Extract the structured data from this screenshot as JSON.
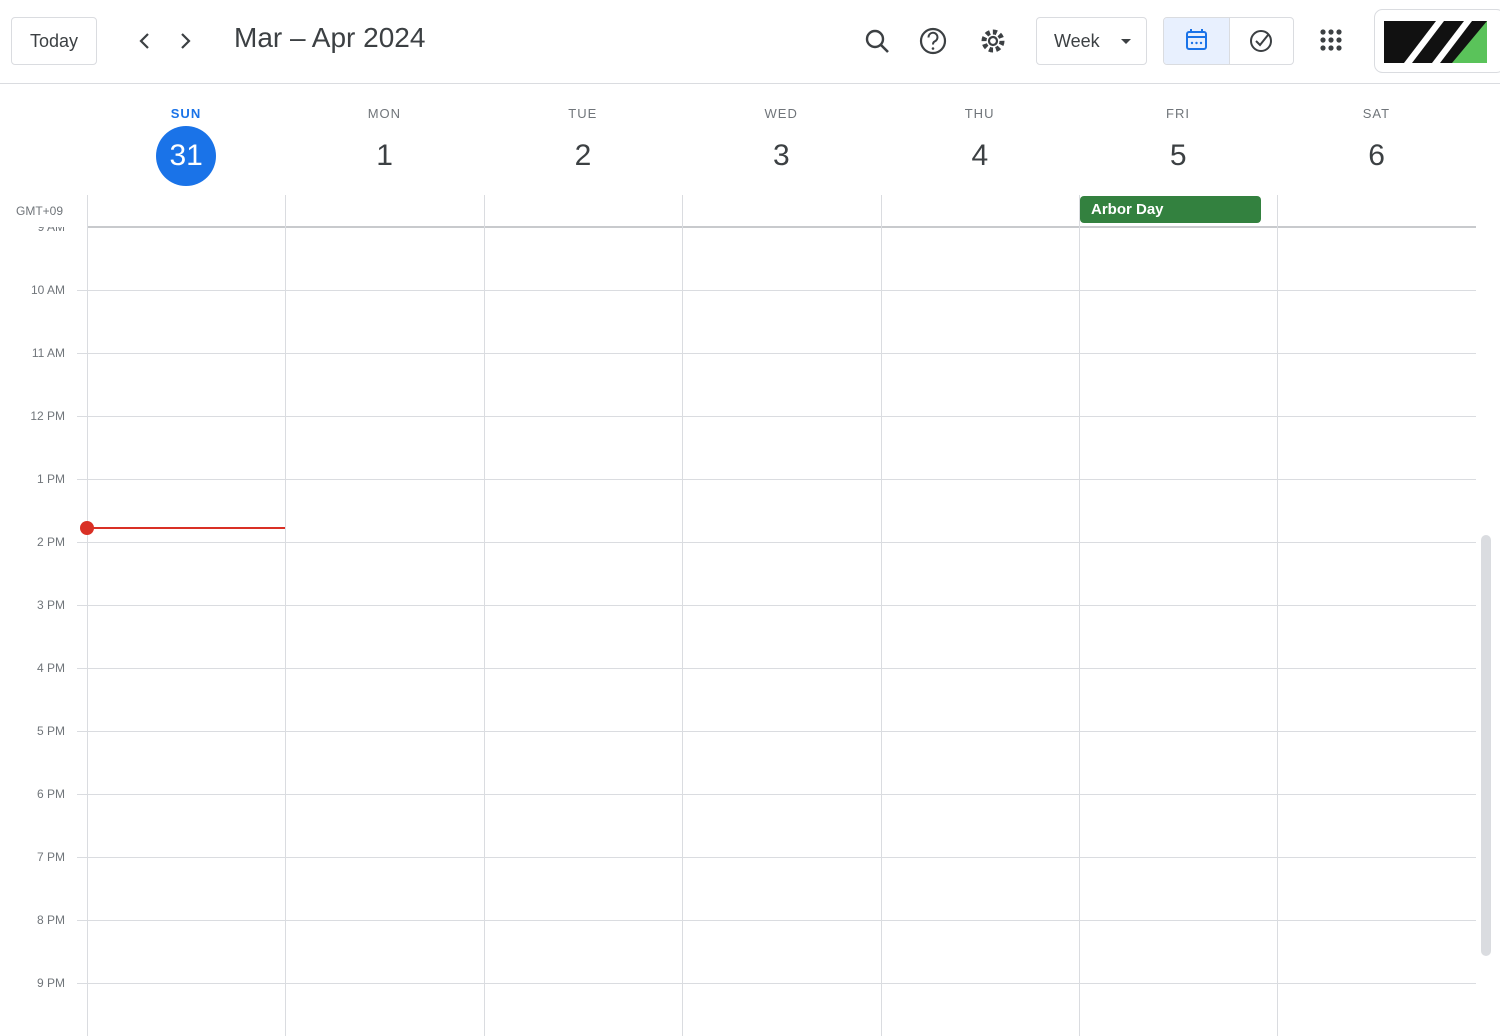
{
  "toolbar": {
    "today": "Today",
    "title": "Mar – Apr 2024",
    "view": "Week"
  },
  "timezone": "GMT+09",
  "days": [
    {
      "name": "SUN",
      "date": "31"
    },
    {
      "name": "MON",
      "date": "1"
    },
    {
      "name": "TUE",
      "date": "2"
    },
    {
      "name": "WED",
      "date": "3"
    },
    {
      "name": "THU",
      "date": "4"
    },
    {
      "name": "FRI",
      "date": "5"
    },
    {
      "name": "SAT",
      "date": "6"
    }
  ],
  "hours": [
    "9 AM",
    "10 AM",
    "11 AM",
    "12 PM",
    "1 PM",
    "2 PM",
    "3 PM",
    "4 PM",
    "5 PM",
    "6 PM",
    "7 PM",
    "8 PM",
    "9 PM"
  ],
  "events": [
    {
      "title": "Arbor Day"
    }
  ]
}
